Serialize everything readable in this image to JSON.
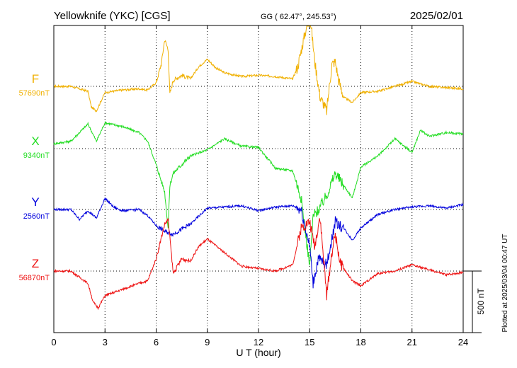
{
  "header": {
    "station": "Yellowknife (YKC)  [CGS]",
    "coords": "GG ( 62.47°, 245.53°)",
    "date": "2025/02/01"
  },
  "footer": {
    "plotted": "Plotted at 2025/03/04 00:47 UT"
  },
  "chart_data": {
    "type": "line",
    "xlabel": "U T (hour)",
    "xlim": [
      0,
      24
    ],
    "x_ticks": [
      0,
      3,
      6,
      9,
      12,
      15,
      18,
      21,
      24
    ],
    "scale_bar": "500 nT",
    "grid": true,
    "series": [
      {
        "name": "F",
        "baseline_label": "57690nT",
        "color": "#f0b000",
        "x": [
          0,
          1,
          1.5,
          2,
          2.2,
          2.5,
          2.8,
          3,
          4,
          5,
          5.5,
          6,
          6.3,
          6.5,
          6.7,
          6.8,
          7,
          7.5,
          8,
          8.5,
          9,
          9.5,
          10,
          11,
          12,
          13,
          14,
          14.3,
          14.6,
          15,
          15.3,
          15.6,
          16,
          16.3,
          16.5,
          16.7,
          17,
          17.5,
          18,
          19,
          20,
          21,
          22,
          23,
          24
        ],
        "values": [
          0,
          0,
          -20,
          -40,
          -170,
          -200,
          -110,
          -50,
          -30,
          -20,
          -30,
          30,
          180,
          380,
          300,
          -60,
          50,
          90,
          60,
          160,
          220,
          150,
          110,
          80,
          90,
          80,
          60,
          160,
          350,
          600,
          200,
          -80,
          -200,
          180,
          200,
          50,
          -90,
          -130,
          -50,
          -40,
          0,
          40,
          0,
          -10,
          -20
        ]
      },
      {
        "name": "X",
        "baseline_label": "9340nT",
        "color": "#22dd22",
        "x": [
          0,
          1,
          2,
          2.5,
          3,
          4,
          5,
          5.5,
          6,
          6.5,
          6.7,
          6.8,
          7,
          8,
          9,
          10,
          11,
          12,
          13,
          14,
          14.5,
          15,
          15.2,
          15.5,
          16,
          16.5,
          17,
          17.5,
          18,
          19,
          20,
          21,
          21.5,
          22,
          23,
          24
        ],
        "values": [
          40,
          60,
          200,
          60,
          210,
          180,
          130,
          60,
          -130,
          -350,
          -650,
          -300,
          -200,
          -60,
          -10,
          80,
          20,
          10,
          -160,
          -180,
          -400,
          -950,
          -550,
          -500,
          -380,
          -200,
          -300,
          -400,
          -150,
          -60,
          80,
          -30,
          150,
          100,
          130,
          120
        ],
        "ylabel_note": ""
      },
      {
        "name": "Y",
        "baseline_label": "2560nT",
        "color": "#0000dd",
        "x": [
          0,
          1,
          1.5,
          2,
          2.5,
          3,
          3.5,
          4,
          5,
          5.5,
          6,
          6.5,
          7,
          8,
          9,
          10,
          11,
          12,
          13,
          14,
          14.5,
          15,
          15.2,
          15.5,
          16,
          16.5,
          17,
          17.5,
          18,
          19,
          20,
          21,
          22,
          23,
          24
        ],
        "values": [
          0,
          0,
          -80,
          -10,
          -70,
          90,
          20,
          -10,
          0,
          -50,
          -130,
          -180,
          -200,
          -120,
          10,
          20,
          30,
          -10,
          20,
          30,
          0,
          -300,
          -600,
          -400,
          -450,
          -100,
          -150,
          -250,
          -150,
          -40,
          0,
          20,
          30,
          10,
          40
        ]
      },
      {
        "name": "Z",
        "baseline_label": "56870nT",
        "color": "#ee1111",
        "x": [
          0,
          1,
          1.5,
          2,
          2.3,
          2.6,
          3,
          4,
          5,
          5.5,
          6,
          6.5,
          6.7,
          7,
          7.5,
          8,
          8.5,
          9,
          10,
          11,
          12,
          13,
          14,
          14.5,
          15,
          15.3,
          15.6,
          16,
          16.3,
          16.5,
          16.8,
          17,
          17.5,
          18,
          19,
          20,
          21,
          22,
          23,
          24
        ],
        "values": [
          0,
          0,
          -50,
          -100,
          -250,
          -300,
          -200,
          -150,
          -100,
          -80,
          100,
          380,
          420,
          -20,
          100,
          80,
          200,
          260,
          150,
          40,
          20,
          0,
          50,
          350,
          400,
          200,
          450,
          -200,
          150,
          300,
          60,
          20,
          -80,
          -120,
          -20,
          0,
          50,
          10,
          -30,
          -10
        ]
      }
    ]
  }
}
